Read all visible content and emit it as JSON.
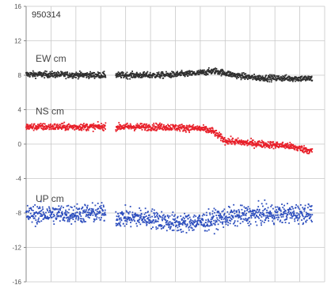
{
  "chart_data": {
    "type": "scatter",
    "title": "950314",
    "xlabel": "",
    "ylabel": "",
    "ylim": [
      -16,
      16
    ],
    "xlim": [
      0,
      12
    ],
    "yticks": [
      16,
      12,
      8,
      4,
      0,
      -4,
      -8,
      -12,
      -16
    ],
    "xgrid_lines": [
      0,
      1,
      2,
      3,
      4,
      5,
      6,
      7,
      8,
      9,
      10,
      11,
      12
    ],
    "grid": true,
    "legend": "none",
    "gap": [
      3.2,
      3.6
    ],
    "series": [
      {
        "name": "EW cm",
        "color": "#2f2f2f",
        "spread": 0.35,
        "trend": [
          [
            0,
            8.1
          ],
          [
            3.2,
            8.0
          ],
          [
            3.6,
            8.0
          ],
          [
            5.5,
            8.0
          ],
          [
            6.8,
            8.2
          ],
          [
            7.6,
            8.5
          ],
          [
            8.4,
            8.0
          ],
          [
            9.2,
            7.7
          ],
          [
            11.5,
            7.6
          ]
        ]
      },
      {
        "name": "NS cm",
        "color": "#e8202a",
        "spread": 0.4,
        "trend": [
          [
            0,
            2.0
          ],
          [
            3.2,
            2.0
          ],
          [
            3.6,
            2.0
          ],
          [
            5.5,
            2.0
          ],
          [
            7.0,
            1.8
          ],
          [
            7.5,
            1.5
          ],
          [
            8.0,
            0.4
          ],
          [
            9.0,
            0.1
          ],
          [
            10.5,
            -0.2
          ],
          [
            11.5,
            -0.8
          ]
        ]
      },
      {
        "name": "UP cm",
        "color": "#2c4dbd",
        "spread": 1.1,
        "trend": [
          [
            0,
            -8.2
          ],
          [
            3.2,
            -8.0
          ],
          [
            3.6,
            -8.5
          ],
          [
            5.0,
            -8.6
          ],
          [
            6.0,
            -9.2
          ],
          [
            7.2,
            -9.0
          ],
          [
            7.8,
            -8.6
          ],
          [
            9.0,
            -8.2
          ],
          [
            11.5,
            -8.0
          ]
        ]
      }
    ]
  }
}
